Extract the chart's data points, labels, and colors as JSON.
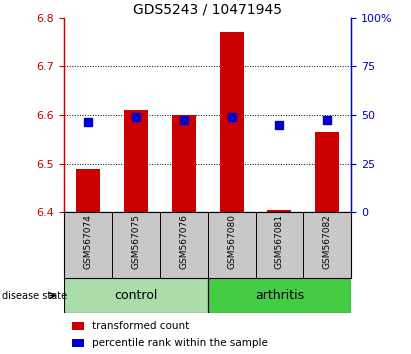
{
  "title": "GDS5243 / 10471945",
  "samples": [
    "GSM567074",
    "GSM567075",
    "GSM567076",
    "GSM567080",
    "GSM567081",
    "GSM567082"
  ],
  "red_bar_tops": [
    6.49,
    6.61,
    6.6,
    6.77,
    6.405,
    6.565
  ],
  "blue_sq_vals": [
    6.585,
    6.595,
    6.59,
    6.595,
    6.58,
    6.59
  ],
  "bar_base": 6.4,
  "ylim_left": [
    6.4,
    6.8
  ],
  "yticks_left": [
    6.4,
    6.5,
    6.6,
    6.7,
    6.8
  ],
  "ylim_right": [
    0,
    100
  ],
  "yticks_right": [
    0,
    25,
    50,
    75,
    100
  ],
  "ytick_labels_right": [
    "0",
    "25",
    "50",
    "75",
    "100%"
  ],
  "red_color": "#CC0000",
  "blue_color": "#0000CC",
  "bar_width": 0.5,
  "blue_sq_size": 35,
  "label_bg_color": "#C8C8C8",
  "control_color": "#AADDAA",
  "arthritis_color": "#44CC44",
  "plot_bg": "#FFFFFF",
  "title_fontsize": 10,
  "tick_fontsize": 8,
  "sample_fontsize": 6.5,
  "group_fontsize": 9,
  "legend_fontsize": 7.5
}
